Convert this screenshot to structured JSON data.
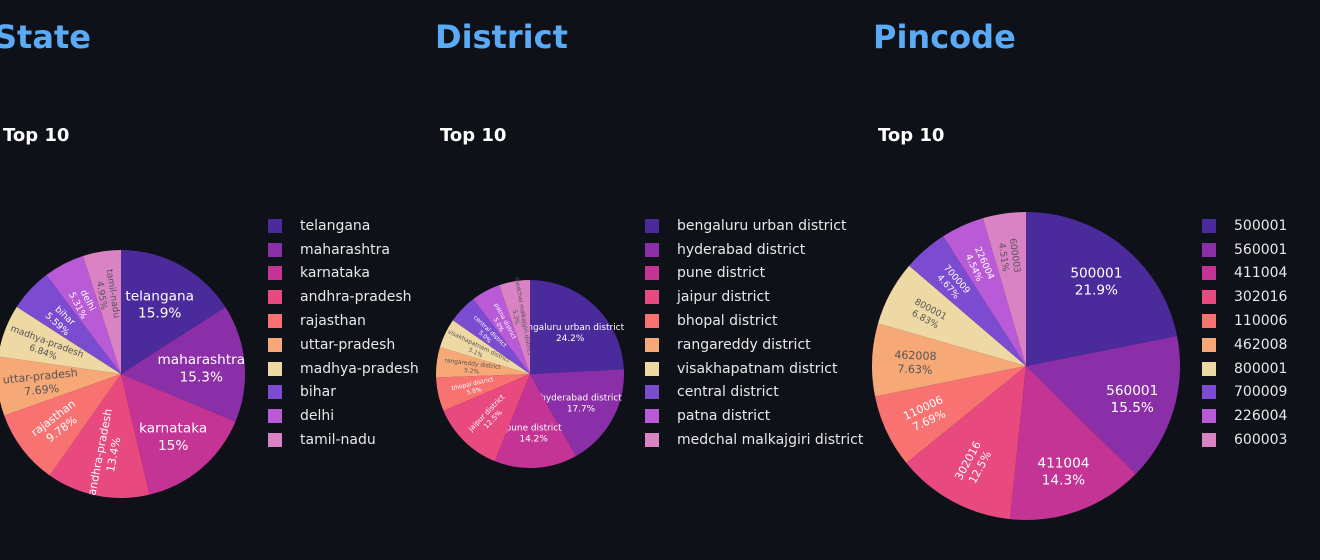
{
  "colors": [
    "#4b2a9b",
    "#8b2fa8",
    "#c43494",
    "#e8497f",
    "#f87272",
    "#f6a877",
    "#eed9a4",
    "#7b4bd0",
    "#b95ad6",
    "#d983c4"
  ],
  "panels": [
    {
      "title": "State",
      "subtitle": "Top 10"
    },
    {
      "title": "District",
      "subtitle": "Top 10"
    },
    {
      "title": "Pincode",
      "subtitle": "Top 10"
    }
  ],
  "chart_data": [
    {
      "type": "pie",
      "title": "Top 10",
      "labels": [
        "telangana",
        "maharashtra",
        "karnataka",
        "andhra-pradesh",
        "rajasthan",
        "uttar-pradesh",
        "madhya-pradesh",
        "bihar",
        "delhi",
        "tamil-nadu"
      ],
      "percent_labels": [
        "15.9%",
        "15.3%",
        "15%",
        "13.4%",
        "9.78%",
        "7.69%",
        "6.84%",
        "5.59%",
        "5.31%",
        "4.95%"
      ],
      "values": [
        15.9,
        15.3,
        15.0,
        13.4,
        9.78,
        7.69,
        6.84,
        5.59,
        5.31,
        4.95
      ],
      "legend": "right"
    },
    {
      "type": "pie",
      "title": "Top 10",
      "labels": [
        "bengaluru urban district",
        "hyderabad district",
        "pune district",
        "jaipur district",
        "bhopal district",
        "rangareddy district",
        "visakhapatnam district",
        "central district",
        "patna district",
        "medchal malkajgiri district"
      ],
      "percent_labels": [
        "24.2%",
        "17.7%",
        "14.2%",
        "12.5%",
        "5.8%",
        "5.2%",
        "5.1%",
        "5.0%",
        "5.0%",
        "5.3%"
      ],
      "values": [
        24.2,
        17.7,
        14.2,
        12.5,
        5.8,
        5.2,
        5.1,
        5.0,
        5.0,
        5.3
      ],
      "legend": "right"
    },
    {
      "type": "pie",
      "title": "Top 10",
      "labels": [
        "500001",
        "560001",
        "411004",
        "302016",
        "110006",
        "462008",
        "800001",
        "700009",
        "226004",
        "600003"
      ],
      "percent_labels": [
        "21.9%",
        "15.5%",
        "14.3%",
        "12.5%",
        "7.69%",
        "7.63%",
        "6.83%",
        "4.67%",
        "4.54%",
        "4.51%"
      ],
      "values": [
        21.9,
        15.5,
        14.3,
        12.5,
        7.69,
        7.63,
        6.83,
        4.67,
        4.54,
        4.51
      ],
      "legend": "right"
    }
  ]
}
